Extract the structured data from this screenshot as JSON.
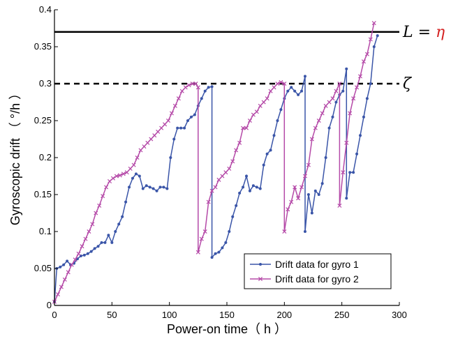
{
  "chart_data": {
    "type": "line",
    "xlabel": "Power-on time（ h ）",
    "ylabel": "Gyroscopic drift （ °/h ）",
    "xlim": [
      0,
      300
    ],
    "ylim": [
      0,
      0.4
    ],
    "xticks": [
      "0",
      "50",
      "100",
      "150",
      "200",
      "250",
      "300"
    ],
    "yticks": [
      "0",
      "0.05",
      "0.1",
      "0.15",
      "0.2",
      "0.25",
      "0.3",
      "0.35",
      "0.4"
    ],
    "grid": false,
    "legend_position": "bottom-right",
    "thresholds": [
      {
        "label_left": "L",
        "label_eq": " = ",
        "label_right": "η",
        "right_color": "#d42020",
        "value": 0.37,
        "style": "solid"
      },
      {
        "label_left": "ζ",
        "label_eq": "",
        "label_right": "",
        "right_color": "#000000",
        "value": 0.3,
        "style": "dashed"
      }
    ],
    "series": [
      {
        "name": "Drift data for gyro 1",
        "color": "#3a55a8",
        "marker": "dot",
        "x": [
          0,
          2,
          5,
          8,
          11,
          14,
          17,
          20,
          23,
          26,
          29,
          32,
          35,
          38,
          41,
          44,
          47,
          50,
          53,
          56,
          59,
          62,
          65,
          68,
          71,
          74,
          77,
          80,
          83,
          86,
          89,
          92,
          95,
          98,
          101,
          104,
          107,
          110,
          113,
          116,
          119,
          122,
          125,
          128,
          131,
          134,
          137,
          137,
          140,
          143,
          146,
          149,
          152,
          155,
          158,
          161,
          164,
          167,
          170,
          173,
          176,
          179,
          182,
          185,
          188,
          191,
          194,
          197,
          200,
          203,
          206,
          209,
          212,
          215,
          218,
          218,
          221,
          224,
          227,
          230,
          233,
          236,
          239,
          242,
          245,
          248,
          251,
          254,
          254,
          257,
          260,
          263,
          266,
          269,
          272,
          275,
          278,
          281
        ],
        "y": [
          0.005,
          0.05,
          0.052,
          0.055,
          0.06,
          0.055,
          0.057,
          0.063,
          0.067,
          0.068,
          0.07,
          0.073,
          0.077,
          0.08,
          0.085,
          0.085,
          0.095,
          0.085,
          0.1,
          0.11,
          0.12,
          0.14,
          0.16,
          0.172,
          0.178,
          0.175,
          0.158,
          0.162,
          0.16,
          0.158,
          0.155,
          0.16,
          0.16,
          0.158,
          0.2,
          0.225,
          0.24,
          0.24,
          0.24,
          0.25,
          0.255,
          0.258,
          0.27,
          0.28,
          0.29,
          0.295,
          0.296,
          0.065,
          0.07,
          0.072,
          0.078,
          0.085,
          0.1,
          0.12,
          0.135,
          0.152,
          0.16,
          0.175,
          0.155,
          0.162,
          0.16,
          0.158,
          0.19,
          0.205,
          0.21,
          0.23,
          0.25,
          0.265,
          0.28,
          0.29,
          0.295,
          0.29,
          0.285,
          0.29,
          0.31,
          0.1,
          0.15,
          0.125,
          0.155,
          0.15,
          0.165,
          0.2,
          0.24,
          0.255,
          0.275,
          0.285,
          0.29,
          0.32,
          0.145,
          0.18,
          0.18,
          0.205,
          0.23,
          0.255,
          0.28,
          0.3,
          0.35,
          0.365
        ]
      },
      {
        "name": "Drift data for gyro 2",
        "color": "#b54aa8",
        "marker": "x",
        "x": [
          0,
          3,
          6,
          9,
          12,
          15,
          18,
          21,
          24,
          27,
          30,
          33,
          36,
          39,
          42,
          45,
          48,
          51,
          54,
          57,
          60,
          63,
          66,
          69,
          72,
          75,
          78,
          81,
          84,
          87,
          90,
          93,
          96,
          99,
          102,
          105,
          108,
          111,
          114,
          117,
          120,
          123,
          125,
          125,
          128,
          131,
          134,
          137,
          140,
          143,
          146,
          149,
          152,
          155,
          158,
          161,
          164,
          167,
          170,
          173,
          176,
          179,
          182,
          185,
          188,
          191,
          194,
          197,
          200,
          200,
          203,
          206,
          209,
          212,
          215,
          218,
          221,
          224,
          227,
          230,
          233,
          236,
          239,
          242,
          245,
          248,
          248,
          251,
          254,
          257,
          260,
          263,
          266,
          269,
          272,
          275,
          278
        ],
        "y": [
          0.005,
          0.015,
          0.025,
          0.035,
          0.045,
          0.055,
          0.062,
          0.07,
          0.08,
          0.09,
          0.1,
          0.11,
          0.125,
          0.135,
          0.148,
          0.16,
          0.168,
          0.172,
          0.175,
          0.176,
          0.178,
          0.18,
          0.185,
          0.19,
          0.2,
          0.21,
          0.215,
          0.22,
          0.225,
          0.23,
          0.235,
          0.24,
          0.245,
          0.25,
          0.26,
          0.27,
          0.28,
          0.29,
          0.295,
          0.298,
          0.3,
          0.3,
          0.295,
          0.072,
          0.09,
          0.1,
          0.14,
          0.155,
          0.16,
          0.17,
          0.175,
          0.18,
          0.185,
          0.195,
          0.21,
          0.22,
          0.24,
          0.24,
          0.25,
          0.258,
          0.262,
          0.27,
          0.275,
          0.28,
          0.29,
          0.295,
          0.3,
          0.302,
          0.3,
          0.1,
          0.13,
          0.14,
          0.16,
          0.145,
          0.16,
          0.175,
          0.19,
          0.225,
          0.24,
          0.25,
          0.26,
          0.27,
          0.275,
          0.28,
          0.29,
          0.3,
          0.135,
          0.18,
          0.22,
          0.26,
          0.28,
          0.295,
          0.31,
          0.33,
          0.34,
          0.36,
          0.382
        ]
      }
    ]
  }
}
